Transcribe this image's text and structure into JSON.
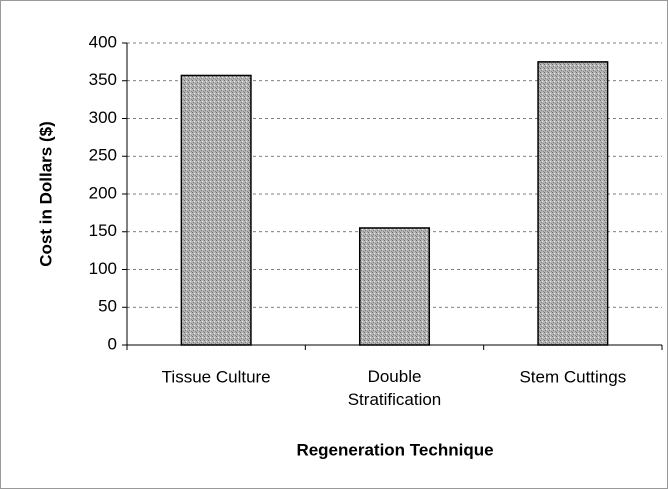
{
  "chart_data": {
    "type": "bar",
    "categories": [
      "Tissue Culture",
      "Double Stratification",
      "Stem Cuttings"
    ],
    "values": [
      357,
      155,
      375
    ],
    "color": "#a8a8a8",
    "xlabel": "Regeneration Technique",
    "ylabel": "Cost in Dollars ($)",
    "ylim": [
      0,
      400
    ],
    "yticks": [
      0,
      50,
      100,
      150,
      200,
      250,
      300,
      350,
      400
    ],
    "grid": true
  }
}
